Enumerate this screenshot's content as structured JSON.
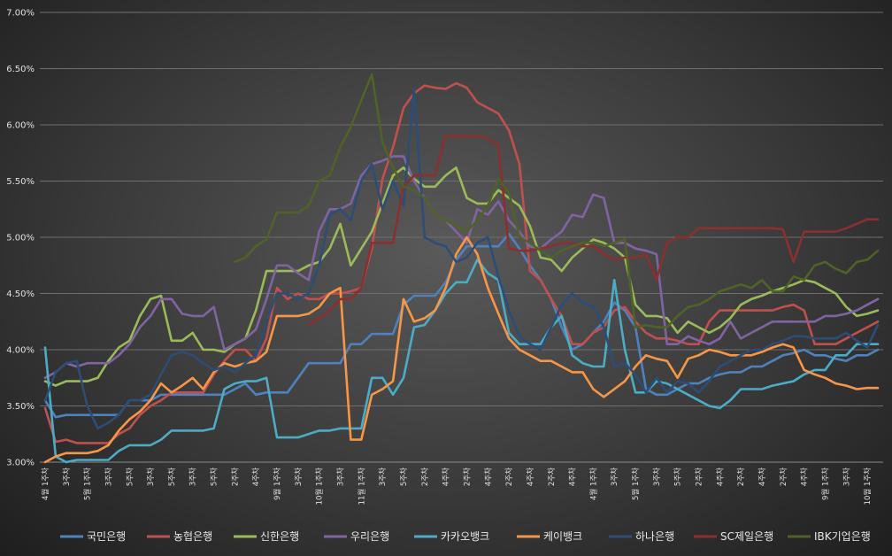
{
  "chart_data": {
    "type": "line",
    "title": "",
    "xlabel": "",
    "ylabel": "",
    "ylim": [
      3.0,
      7.0
    ],
    "y_ticks": [
      "3.00%",
      "3.50%",
      "4.00%",
      "4.50%",
      "5.00%",
      "5.50%",
      "6.00%",
      "6.50%",
      "7.00%"
    ],
    "x_labels": [
      "4월 1주차",
      "3주차",
      "5월 1주차",
      "3주차",
      "5주차",
      "3주차",
      "5주차",
      "3주차",
      "5주차",
      "2주차",
      "4주차",
      "9월 1주차",
      "3주차",
      "10월 1주차",
      "3주차",
      "11월 1주차",
      "3주차",
      "5주차",
      "2주차",
      "4주차",
      "2주차",
      "4주차",
      "2주차",
      "4주차",
      "2주차",
      "4주차",
      "4월 1주차",
      "3주차",
      "5월 1주차",
      "3주차",
      "5주차",
      "2주차",
      "4주차",
      "2주차",
      "4주차",
      "2주차",
      "4주차",
      "9월 1주차",
      "3주차",
      "10월 1주차"
    ],
    "x_count": 80,
    "legend_position": "bottom",
    "series": [
      {
        "name": "국민은행",
        "color": "#4f81bd",
        "values": [
          3.55,
          3.4,
          3.42,
          3.42,
          3.42,
          3.42,
          3.42,
          3.42,
          3.55,
          3.55,
          3.55,
          3.6,
          3.6,
          3.6,
          3.6,
          3.6,
          3.6,
          3.6,
          3.65,
          3.7,
          3.6,
          3.62,
          3.62,
          3.62,
          3.75,
          3.88,
          3.88,
          3.88,
          3.88,
          4.05,
          4.05,
          4.14,
          4.14,
          4.14,
          4.4,
          4.48,
          4.48,
          4.48,
          4.6,
          4.8,
          4.92,
          4.92,
          4.92,
          4.92,
          5.03,
          4.9,
          4.75,
          4.62,
          4.45,
          4.2,
          4.0,
          4.05,
          4.15,
          4.25,
          4.42,
          4.35,
          4.2,
          3.65,
          3.6,
          3.6,
          3.65,
          3.7,
          3.7,
          3.75,
          3.78,
          3.8,
          3.8,
          3.85,
          3.85,
          3.9,
          3.95,
          3.97,
          4.0,
          3.95,
          3.95,
          3.92,
          3.9,
          3.95,
          3.95,
          4.0
        ]
      },
      {
        "name": "농협은행",
        "color": "#c0504d",
        "values": [
          3.48,
          3.18,
          3.2,
          3.17,
          3.17,
          3.17,
          3.17,
          3.25,
          3.3,
          3.42,
          3.5,
          3.55,
          3.62,
          3.62,
          3.62,
          3.62,
          3.78,
          3.9,
          4.0,
          4.0,
          3.9,
          4.1,
          4.55,
          4.45,
          4.5,
          4.45,
          4.45,
          4.5,
          4.5,
          4.52,
          4.55,
          4.9,
          5.52,
          5.8,
          6.15,
          6.28,
          6.35,
          6.33,
          6.32,
          6.37,
          6.33,
          6.2,
          6.15,
          6.1,
          5.95,
          5.65,
          4.7,
          4.62,
          4.45,
          4.3,
          4.05,
          4.05,
          4.15,
          4.2,
          4.35,
          4.38,
          4.25,
          4.15,
          4.1,
          4.1,
          4.08,
          4.05,
          4.05,
          4.25,
          4.35,
          4.35,
          4.35,
          4.35,
          4.35,
          4.35,
          4.38,
          4.4,
          4.35,
          4.05,
          4.05,
          4.05,
          4.1,
          4.15,
          4.2,
          4.25
        ]
      },
      {
        "name": "신한은행",
        "color": "#9bbb59",
        "values": [
          3.72,
          3.68,
          3.72,
          3.72,
          3.72,
          3.75,
          3.9,
          4.02,
          4.08,
          4.3,
          4.45,
          4.48,
          4.08,
          4.08,
          4.15,
          4.0,
          4.0,
          3.98,
          4.05,
          4.1,
          4.35,
          4.7,
          4.7,
          4.7,
          4.7,
          4.75,
          4.78,
          4.9,
          5.12,
          4.75,
          4.9,
          5.05,
          5.3,
          5.55,
          5.62,
          5.52,
          5.45,
          5.45,
          5.55,
          5.62,
          5.35,
          5.3,
          5.3,
          5.42,
          5.35,
          5.28,
          5.1,
          4.82,
          4.8,
          4.7,
          4.82,
          4.9,
          4.98,
          4.95,
          4.9,
          4.82,
          4.4,
          4.3,
          4.3,
          4.28,
          4.15,
          4.25,
          4.2,
          4.15,
          4.2,
          4.28,
          4.4,
          4.45,
          4.48,
          4.52,
          4.55,
          4.58,
          4.62,
          4.6,
          4.55,
          4.5,
          4.38,
          4.3,
          4.32,
          4.35
        ]
      },
      {
        "name": "우리은행",
        "color": "#8064a2",
        "values": [
          3.75,
          3.8,
          3.88,
          3.85,
          3.88,
          3.88,
          3.88,
          3.95,
          4.05,
          4.2,
          4.3,
          4.45,
          4.45,
          4.32,
          4.3,
          4.3,
          4.38,
          4.0,
          4.05,
          4.1,
          4.18,
          4.45,
          4.75,
          4.75,
          4.68,
          4.62,
          5.05,
          5.25,
          5.25,
          5.3,
          5.55,
          5.65,
          5.68,
          5.72,
          5.72,
          5.5,
          5.35,
          5.2,
          5.15,
          5.05,
          4.95,
          5.25,
          5.2,
          5.32,
          5.15,
          5.05,
          4.92,
          4.9,
          4.98,
          5.05,
          5.2,
          5.18,
          5.38,
          5.35,
          4.95,
          4.95,
          4.9,
          4.88,
          4.85,
          4.05,
          4.05,
          4.12,
          4.08,
          4.05,
          4.1,
          4.25,
          4.1,
          4.15,
          4.2,
          4.25,
          4.25,
          4.25,
          4.25,
          4.25,
          4.3,
          4.3,
          4.32,
          4.35,
          4.4,
          4.45
        ]
      },
      {
        "name": "카카오뱅크",
        "color": "#4bacc6",
        "values": [
          4.02,
          3.05,
          3.0,
          3.02,
          3.02,
          3.02,
          3.02,
          3.1,
          3.15,
          3.15,
          3.15,
          3.2,
          3.28,
          3.28,
          3.28,
          3.28,
          3.3,
          3.65,
          3.7,
          3.72,
          3.72,
          3.75,
          3.22,
          3.22,
          3.22,
          3.25,
          3.28,
          3.28,
          3.3,
          3.3,
          3.3,
          3.75,
          3.75,
          3.6,
          3.75,
          4.2,
          4.22,
          4.35,
          4.5,
          4.6,
          4.6,
          4.8,
          4.68,
          4.62,
          4.15,
          4.05,
          4.05,
          4.05,
          4.2,
          4.3,
          3.95,
          3.88,
          3.85,
          3.85,
          4.62,
          4.0,
          3.62,
          3.62,
          3.72,
          3.7,
          3.65,
          3.6,
          3.55,
          3.5,
          3.48,
          3.55,
          3.65,
          3.65,
          3.65,
          3.68,
          3.7,
          3.72,
          3.78,
          3.82,
          3.82,
          3.95,
          3.95,
          4.05,
          4.05,
          4.05
        ]
      },
      {
        "name": "케이뱅크",
        "color": "#f79646",
        "values": [
          3.0,
          3.05,
          3.08,
          3.08,
          3.08,
          3.1,
          3.15,
          3.28,
          3.38,
          3.45,
          3.55,
          3.7,
          3.62,
          3.68,
          3.75,
          3.65,
          3.8,
          3.88,
          3.85,
          3.88,
          3.9,
          3.98,
          4.3,
          4.3,
          4.3,
          4.32,
          4.38,
          4.5,
          4.55,
          3.2,
          3.2,
          3.6,
          3.65,
          3.72,
          4.45,
          4.25,
          4.28,
          4.35,
          4.55,
          4.85,
          5.0,
          4.85,
          4.55,
          4.32,
          4.1,
          4.0,
          3.95,
          3.9,
          3.9,
          3.85,
          3.8,
          3.8,
          3.65,
          3.58,
          3.65,
          3.72,
          3.85,
          3.95,
          3.92,
          3.9,
          3.75,
          3.92,
          3.95,
          4.0,
          3.98,
          3.95,
          3.95,
          3.95,
          3.98,
          4.02,
          4.05,
          4.02,
          3.82,
          3.78,
          3.75,
          3.7,
          3.68,
          3.65,
          3.66,
          3.66
        ]
      },
      {
        "name": "하나은행",
        "color": "#2c4d75",
        "values": [
          3.55,
          3.8,
          3.88,
          3.9,
          3.5,
          3.3,
          3.35,
          3.42,
          3.55,
          3.55,
          3.6,
          3.78,
          3.95,
          3.98,
          3.95,
          3.88,
          3.82,
          3.85,
          3.8,
          3.88,
          3.95,
          4.25,
          4.5,
          4.5,
          4.45,
          4.5,
          4.75,
          5.2,
          5.25,
          5.15,
          5.5,
          5.65,
          5.25,
          5.5,
          5.28,
          6.32,
          5.0,
          4.95,
          4.92,
          4.78,
          4.82,
          4.95,
          5.0,
          4.65,
          4.35,
          4.12,
          4.05,
          4.0,
          4.2,
          4.4,
          4.5,
          4.42,
          4.38,
          4.2,
          3.85,
          3.88,
          3.78,
          3.62,
          3.75,
          3.62,
          3.72,
          3.7,
          3.62,
          3.72,
          3.85,
          3.9,
          3.95,
          4.0,
          4.0,
          4.05,
          4.08,
          4.12,
          4.12,
          4.1,
          4.1,
          4.1,
          4.15,
          4.08,
          4.02,
          4.22
        ]
      },
      {
        "name": "SC제일은행",
        "color": "#8b2f2f",
        "values": [
          null,
          null,
          null,
          null,
          null,
          null,
          null,
          null,
          null,
          null,
          null,
          null,
          null,
          null,
          null,
          null,
          null,
          null,
          null,
          null,
          null,
          null,
          null,
          null,
          null,
          4.22,
          4.28,
          4.35,
          4.45,
          4.45,
          4.55,
          4.95,
          4.95,
          4.95,
          5.45,
          5.55,
          5.55,
          5.55,
          5.9,
          5.9,
          5.9,
          5.9,
          5.88,
          5.82,
          4.9,
          4.88,
          4.88,
          4.9,
          4.92,
          4.95,
          4.95,
          4.92,
          4.92,
          4.85,
          4.8,
          4.82,
          4.82,
          4.85,
          4.62,
          4.95,
          5.0,
          5.0,
          5.08,
          5.08,
          5.08,
          5.08,
          5.08,
          5.08,
          5.08,
          5.08,
          5.07,
          4.78,
          5.05,
          5.05,
          5.05,
          5.05,
          5.08,
          5.12,
          5.16,
          5.16
        ]
      },
      {
        "name": "IBK기업은행",
        "color": "#4f6228",
        "values": [
          null,
          null,
          null,
          null,
          null,
          null,
          null,
          null,
          null,
          null,
          null,
          null,
          null,
          null,
          null,
          null,
          null,
          null,
          4.78,
          4.82,
          4.92,
          4.98,
          5.22,
          5.22,
          5.22,
          5.28,
          5.5,
          5.55,
          5.8,
          5.98,
          6.22,
          6.45,
          5.85,
          5.62,
          5.45,
          5.42,
          5.35,
          5.2,
          5.15,
          5.1,
          5.05,
          5.15,
          5.28,
          5.52,
          5.4,
          5.0,
          4.95,
          4.88,
          4.82,
          4.88,
          4.92,
          4.95,
          4.95,
          4.92,
          4.95,
          4.98,
          4.2,
          4.22,
          4.2,
          4.2,
          4.3,
          4.38,
          4.4,
          4.45,
          4.52,
          4.55,
          4.58,
          4.55,
          4.62,
          4.52,
          4.52,
          4.65,
          4.62,
          4.75,
          4.78,
          4.72,
          4.68,
          4.78,
          4.8,
          4.88
        ]
      }
    ]
  }
}
